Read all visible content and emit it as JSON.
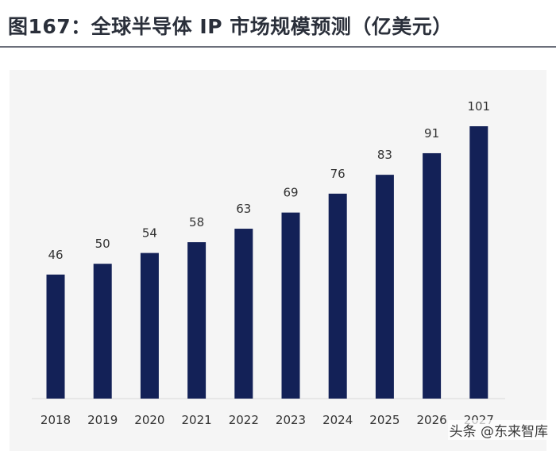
{
  "title": "图167：全球半导体 IP 市场规模预测（亿美元）",
  "watermark": "头条 @东来智库",
  "colors": {
    "bar": "#132157",
    "panel": "#f5f5f5",
    "text": "#333333"
  },
  "chart_data": {
    "type": "bar",
    "title": "图167：全球半导体 IP 市场规模预测（亿美元）",
    "categories": [
      "2018",
      "2019",
      "2020",
      "2021",
      "2022",
      "2023",
      "2024",
      "2025",
      "2026",
      "2027"
    ],
    "values": [
      46,
      50,
      54,
      58,
      63,
      69,
      76,
      83,
      91,
      101
    ],
    "data_labels": [
      "46",
      "50",
      "54",
      "58",
      "63",
      "69",
      "76",
      "83",
      "91",
      "101"
    ],
    "xlabel": "",
    "ylabel": "",
    "ylim": [
      0,
      101
    ],
    "grid": false,
    "legend": "none"
  }
}
